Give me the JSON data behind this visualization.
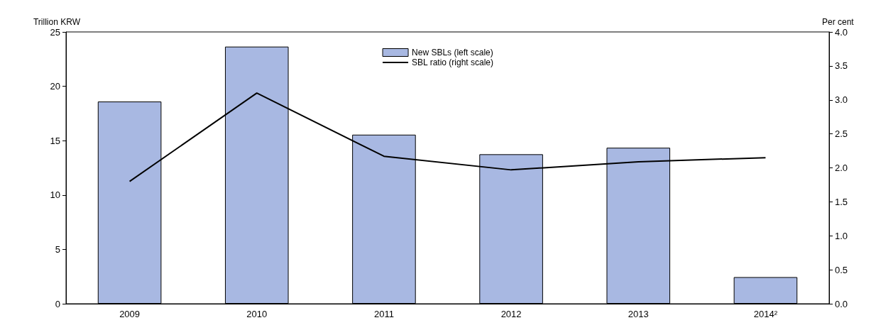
{
  "chart_data": {
    "type": "bar",
    "ylabel": "Trillion KRW",
    "y2label": "Per cent",
    "categories": [
      "2009",
      "2010",
      "2011",
      "2012",
      "2013",
      "2014²"
    ],
    "series": [
      {
        "name": "New SBLs (left scale)",
        "color": "#a8b8e2",
        "values": [
          18.6,
          23.65,
          15.55,
          13.75,
          14.35,
          2.45
        ]
      },
      {
        "name": "SBL ratio (right scale)",
        "type": "line",
        "axis": "y2",
        "color": "#000000",
        "values": [
          1.8,
          3.1,
          2.17,
          1.97,
          2.09,
          2.15
        ]
      }
    ],
    "ylim": [
      0,
      25
    ],
    "yticks": [
      0,
      5,
      10,
      15,
      20,
      25
    ],
    "y2lim": [
      0,
      4
    ],
    "y2ticks": [
      {
        "value": 0,
        "label": "0.0"
      },
      {
        "value": 0.5,
        "label": "0.5"
      },
      {
        "value": 1,
        "label": "1.0"
      },
      {
        "value": 1.5,
        "label": "1.5"
      },
      {
        "value": 2,
        "label": "2.0"
      },
      {
        "value": 2.5,
        "label": "2.5"
      },
      {
        "value": 3,
        "label": "3.0"
      },
      {
        "value": 3.5,
        "label": "3.5"
      },
      {
        "value": 4,
        "label": "4.0"
      }
    ],
    "grid": false,
    "legend": "top",
    "marker": "none",
    "line_style": "solid"
  }
}
